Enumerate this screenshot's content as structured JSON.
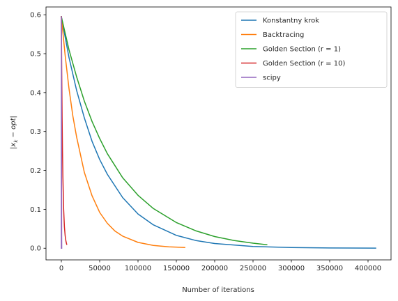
{
  "chart_data": {
    "type": "line",
    "title": "",
    "xlabel": "Number of iterations",
    "ylabel": "|x_k - opt|",
    "xlim": [
      -20000,
      430000
    ],
    "ylim": [
      -0.03,
      0.62
    ],
    "grid": false,
    "legend_position": "top-right",
    "x_ticks": [
      0,
      50000,
      100000,
      150000,
      200000,
      250000,
      300000,
      350000,
      400000
    ],
    "x_tick_labels": [
      "0",
      "50000",
      "100000",
      "150000",
      "200000",
      "250000",
      "300000",
      "350000",
      "400000"
    ],
    "y_ticks": [
      0.0,
      0.1,
      0.2,
      0.3,
      0.4,
      0.5,
      0.6
    ],
    "y_tick_labels": [
      "0.0",
      "0.1",
      "0.2",
      "0.3",
      "0.4",
      "0.5",
      "0.6"
    ],
    "series": [
      {
        "name": "Konstantny krok",
        "color": "#1f77b4",
        "x": [
          0,
          10000,
          20000,
          30000,
          40000,
          50000,
          60000,
          80000,
          100000,
          120000,
          150000,
          175000,
          200000,
          250000,
          300000,
          350000,
          410000
        ],
        "y": [
          0.595,
          0.49,
          0.405,
          0.335,
          0.275,
          0.228,
          0.19,
          0.13,
          0.088,
          0.06,
          0.033,
          0.02,
          0.012,
          0.0045,
          0.0017,
          0.0006,
          0.0002
        ]
      },
      {
        "name": "Backtracing",
        "color": "#ff7f0e",
        "x": [
          0,
          5000,
          10000,
          15000,
          20000,
          30000,
          40000,
          50000,
          60000,
          70000,
          80000,
          100000,
          120000,
          140000,
          161000
        ],
        "y": [
          0.595,
          0.495,
          0.41,
          0.34,
          0.285,
          0.195,
          0.135,
          0.092,
          0.064,
          0.044,
          0.031,
          0.015,
          0.0072,
          0.0036,
          0.0018
        ]
      },
      {
        "name": "Golden Section (r = 1)",
        "color": "#2ca02c",
        "x": [
          0,
          10000,
          20000,
          30000,
          40000,
          50000,
          60000,
          80000,
          100000,
          120000,
          150000,
          175000,
          200000,
          225000,
          250000,
          268000
        ],
        "y": [
          0.595,
          0.51,
          0.44,
          0.378,
          0.326,
          0.282,
          0.243,
          0.181,
          0.136,
          0.102,
          0.066,
          0.045,
          0.03,
          0.02,
          0.013,
          0.009
        ]
      },
      {
        "name": "Golden Section (r = 10)",
        "color": "#d62728",
        "x": [
          0,
          500,
          1000,
          1500,
          2000,
          3000,
          4000,
          5000,
          6000,
          7000
        ],
        "y": [
          0.595,
          0.45,
          0.335,
          0.25,
          0.185,
          0.1,
          0.055,
          0.032,
          0.018,
          0.01
        ]
      },
      {
        "name": "scipy",
        "color": "#9467bd",
        "x": [
          0,
          50,
          100,
          150,
          200,
          250,
          300,
          400,
          500
        ],
        "y": [
          0.0,
          0.35,
          0.595,
          0.5,
          0.35,
          0.2,
          0.1,
          0.03,
          0.0
        ]
      }
    ]
  }
}
